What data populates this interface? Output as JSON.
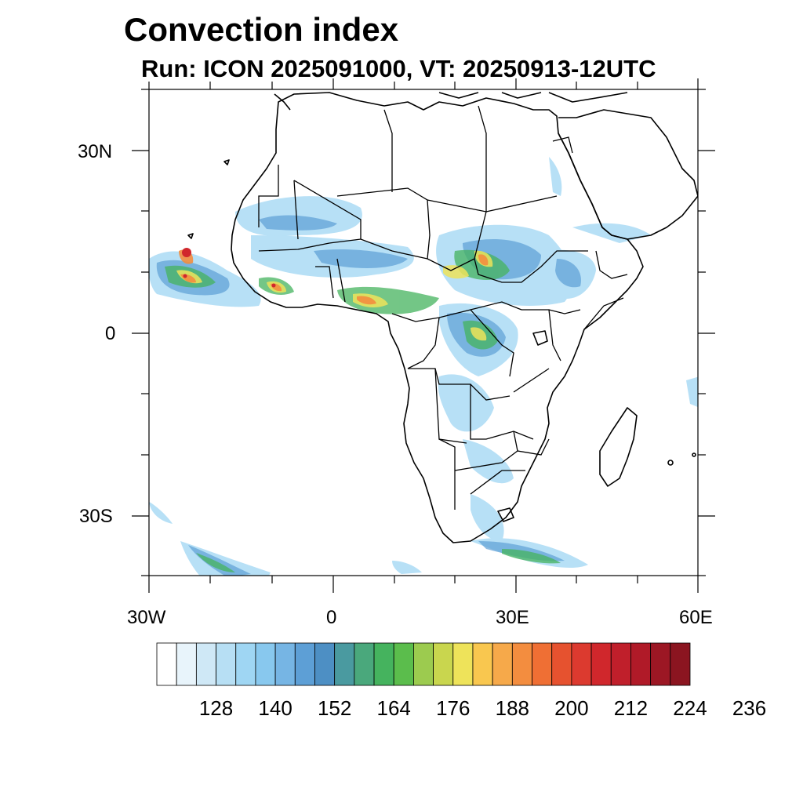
{
  "title": "Convection index",
  "subtitle": "Run: ICON 2025091000,  VT: 20250913-12UTC",
  "axes": {
    "lat_labels": [
      "30N",
      "0",
      "30S"
    ],
    "lon_labels": [
      "30W",
      "0",
      "30E",
      "60E"
    ]
  },
  "colorbar": {
    "labels": [
      "128",
      "140",
      "152",
      "164",
      "176",
      "188",
      "200",
      "212",
      "224",
      "236"
    ],
    "colors": [
      "#ffffff",
      "#e8f4fb",
      "#cfe8f6",
      "#b7dff4",
      "#9fd6f3",
      "#88c8ee",
      "#76b5e4",
      "#5d9fd6",
      "#4d8fc4",
      "#4a9aa0",
      "#4aa87c",
      "#45b35e",
      "#5bbd4c",
      "#9ccb4f",
      "#c9d64e",
      "#eee35a",
      "#f9c74f",
      "#f6a94a",
      "#f38d3f",
      "#ef6f34",
      "#e6522f",
      "#dc3a2f",
      "#d0272c",
      "#c01f2b",
      "#b01a28",
      "#9c1724",
      "#8b1520"
    ]
  },
  "chart_data": {
    "type": "heatmap",
    "title": "Convection index",
    "subtitle": "Run: ICON 2025091000,  VT: 20250913-12UTC",
    "x_range": [
      "30W",
      "60E"
    ],
    "y_range": [
      "40S",
      "40N"
    ],
    "colorbar_ticks": [
      128,
      140,
      152,
      164,
      176,
      188,
      200,
      212,
      224,
      236
    ]
  }
}
